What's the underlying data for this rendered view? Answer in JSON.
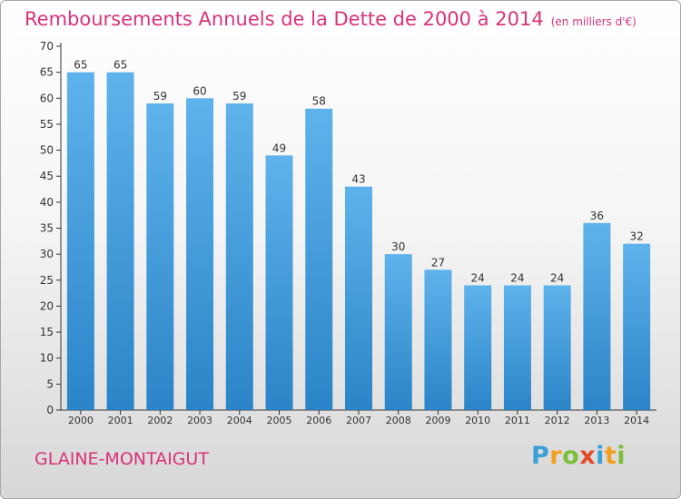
{
  "title": "Remboursements Annuels de la Dette de 2000 à 2014",
  "unit": "(en milliers d'€)",
  "commune": "GLAINE-MONTAIGUT",
  "brand": {
    "letters": [
      "P",
      "r",
      "o",
      "x",
      "i",
      "t",
      "i"
    ],
    "colors": [
      "#3aa0d8",
      "#f2a01c",
      "#7cbf3a",
      "#e24a2b",
      "#3aa0d8",
      "#f2a01c",
      "#7cbf3a"
    ]
  },
  "colors": {
    "bar_top": "#5fb3ec",
    "bar_bottom": "#2a84c7",
    "accent": "#d9327a"
  },
  "chart_data": {
    "type": "bar",
    "title": "Remboursements Annuels de la Dette de 2000 à 2014",
    "categories": [
      "2000",
      "2001",
      "2002",
      "2003",
      "2004",
      "2005",
      "2006",
      "2007",
      "2008",
      "2009",
      "2010",
      "2011",
      "2012",
      "2013",
      "2014"
    ],
    "values": [
      65,
      65,
      59,
      60,
      59,
      49,
      58,
      43,
      30,
      27,
      24,
      24,
      24,
      36,
      32
    ],
    "ylim": [
      0,
      70
    ],
    "yticks": [
      0,
      5,
      10,
      15,
      20,
      25,
      30,
      35,
      40,
      45,
      50,
      55,
      60,
      65,
      70
    ],
    "grid": false,
    "data_labels": true
  }
}
